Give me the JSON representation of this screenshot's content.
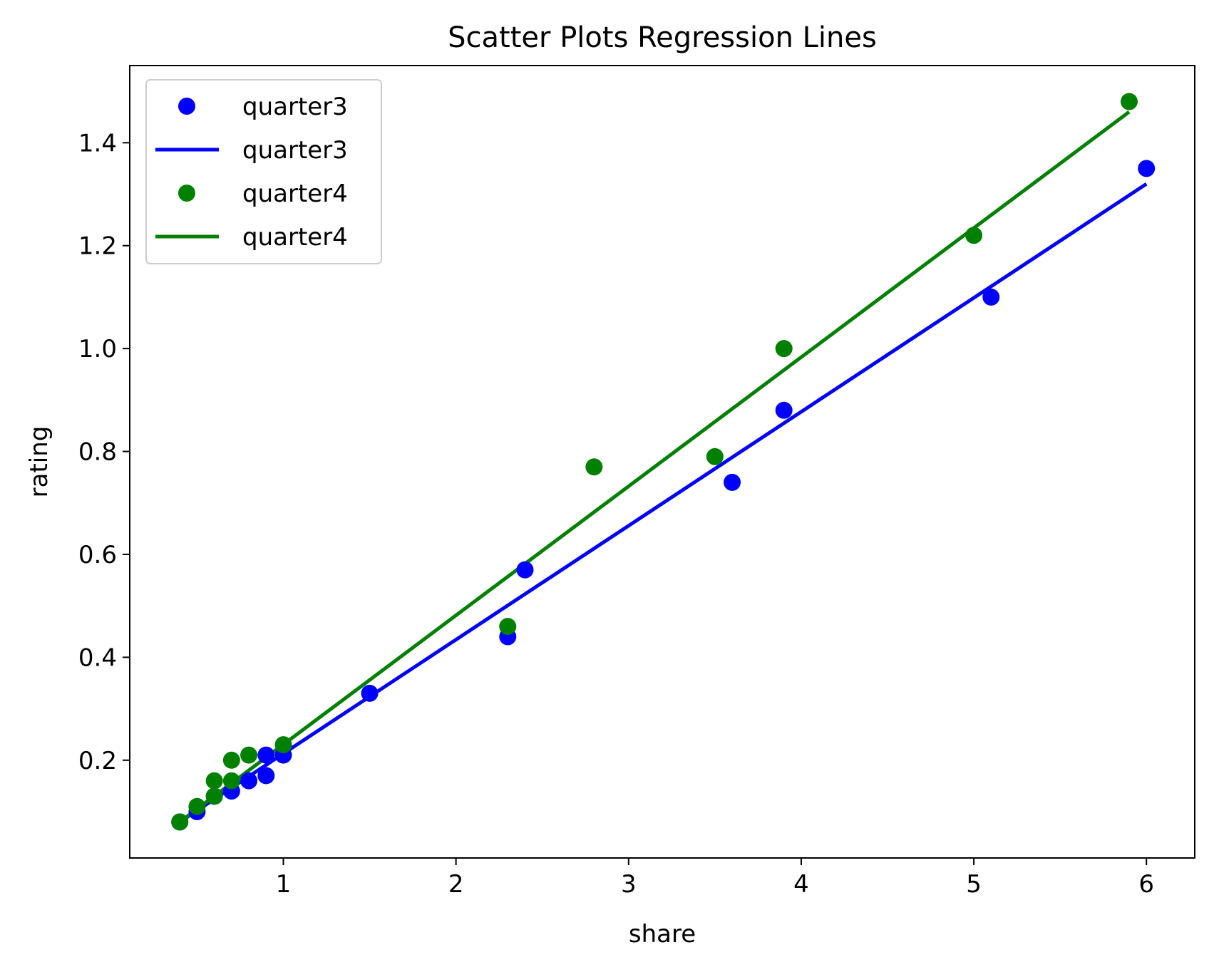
{
  "chart_data": {
    "type": "scatter",
    "title": "Scatter Plots Regression Lines",
    "xlabel": "share",
    "ylabel": "rating",
    "xlim": [
      0.11,
      6.28
    ],
    "ylim": [
      0.01,
      1.55
    ],
    "xticks": [
      1,
      2,
      3,
      4,
      5,
      6
    ],
    "xtick_labels": [
      "1",
      "2",
      "3",
      "4",
      "5",
      "6"
    ],
    "yticks": [
      0.2,
      0.4,
      0.6,
      0.8,
      1.0,
      1.2,
      1.4
    ],
    "ytick_labels": [
      "0.2",
      "0.4",
      "0.6",
      "0.8",
      "1.0",
      "1.2",
      "1.4"
    ],
    "grid": false,
    "legend_position": "upper left",
    "legend": [
      "quarter3",
      "quarter3",
      "quarter4",
      "quarter4"
    ],
    "series": [
      {
        "name": "quarter3",
        "kind": "points",
        "color": "#0000ff",
        "x": [
          0.4,
          0.5,
          0.6,
          0.7,
          0.8,
          0.9,
          0.9,
          1.0,
          1.5,
          2.3,
          2.4,
          3.6,
          3.9,
          5.1,
          6.0
        ],
        "y": [
          0.08,
          0.1,
          0.13,
          0.14,
          0.16,
          0.17,
          0.21,
          0.21,
          0.33,
          0.44,
          0.57,
          0.74,
          0.88,
          1.1,
          1.35
        ]
      },
      {
        "name": "quarter3",
        "kind": "line",
        "color": "#0000ff",
        "x": [
          0.4,
          6.0
        ],
        "y": [
          0.08,
          1.32
        ]
      },
      {
        "name": "quarter4",
        "kind": "points",
        "color": "#008000",
        "x": [
          0.4,
          0.5,
          0.6,
          0.6,
          0.7,
          0.7,
          0.8,
          1.0,
          2.3,
          2.8,
          3.5,
          3.9,
          5.0,
          5.9
        ],
        "y": [
          0.08,
          0.11,
          0.13,
          0.16,
          0.16,
          0.2,
          0.21,
          0.23,
          0.46,
          0.77,
          0.79,
          1.0,
          1.22,
          1.48
        ]
      },
      {
        "name": "quarter4",
        "kind": "line",
        "color": "#008000",
        "x": [
          0.4,
          5.9
        ],
        "y": [
          0.08,
          1.46
        ]
      }
    ]
  }
}
